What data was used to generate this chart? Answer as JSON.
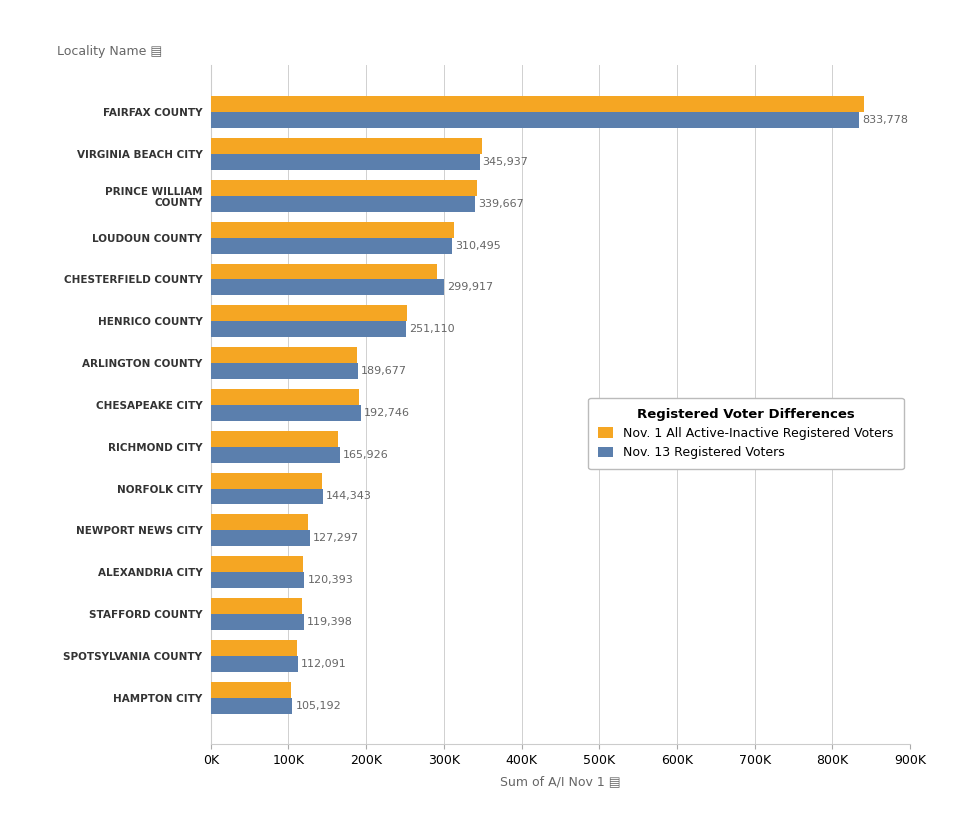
{
  "categories": [
    "FAIRFAX COUNTY",
    "VIRGINIA BEACH CITY",
    "PRINCE WILLIAM\nCOUNTY",
    "LOUDOUN COUNTY",
    "CHESTERFIELD COUNTY",
    "HENRICO COUNTY",
    "ARLINGTON COUNTY",
    "CHESAPEAKE CITY",
    "RICHMOND CITY",
    "NORFOLK CITY",
    "NEWPORT NEWS CITY",
    "ALEXANDRIA CITY",
    "STAFFORD COUNTY",
    "SPOTSYLVANIA COUNTY",
    "HAMPTON CITY"
  ],
  "nov13_values": [
    833778,
    345937,
    339667,
    310495,
    299917,
    251110,
    189677,
    192746,
    165926,
    144343,
    127297,
    120393,
    119398,
    112091,
    105192
  ],
  "nov1_values": [
    841000,
    348500,
    342500,
    313000,
    291000,
    252000,
    188500,
    191000,
    163500,
    143000,
    125500,
    119000,
    118000,
    110500,
    103500
  ],
  "nov13_color": "#5b7fad",
  "nov1_color": "#f5a623",
  "legend_title": "Registered Voter Differences",
  "legend_nov1": "Nov. 1 All Active-Inactive Registered Voters",
  "legend_nov13": "Nov. 13 Registered Voters",
  "xlabel": "Sum of A/I Nov 1 ▤",
  "ylabel": "Locality Name ▤",
  "background_color": "#ffffff",
  "gridline_color": "#d0d0d0",
  "bar_height": 0.38,
  "xlim": [
    0,
    900000
  ]
}
